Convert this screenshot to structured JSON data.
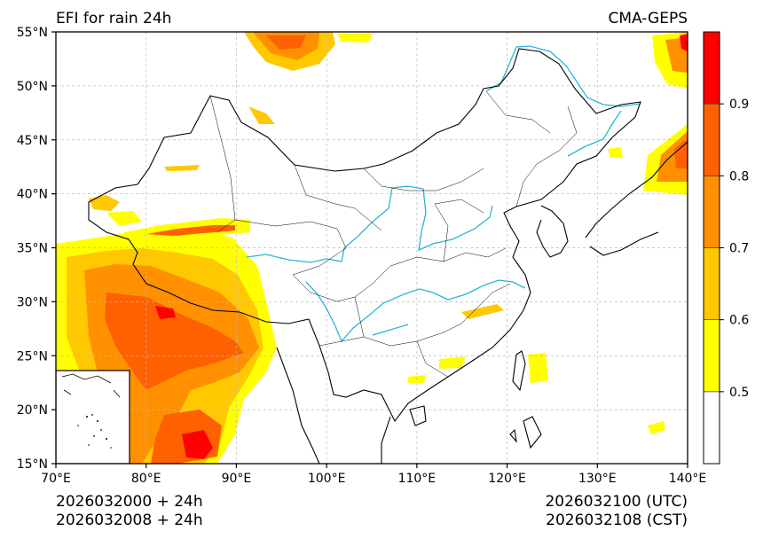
{
  "title_left": "EFI for rain 24h",
  "title_right": "CMA-GEPS",
  "map": {
    "lon_range": [
      70,
      140
    ],
    "lat_range": [
      15,
      55
    ],
    "lon_ticks": [
      70,
      80,
      90,
      100,
      110,
      120,
      130,
      140
    ],
    "lat_ticks": [
      15,
      20,
      25,
      30,
      35,
      40,
      45,
      50,
      55
    ],
    "lon_labels": [
      "70°E",
      "80°E",
      "90°E",
      "100°E",
      "110°E",
      "120°E",
      "130°E",
      "140°E"
    ],
    "lat_labels": [
      "15°N",
      "20°N",
      "25°N",
      "30°N",
      "35°N",
      "40°N",
      "45°N",
      "50°N",
      "55°N"
    ],
    "grid": true,
    "river_color": "#29b6d6",
    "border_color": "#000000"
  },
  "colorbar": {
    "levels": [
      0.5,
      0.6,
      0.7,
      0.8,
      0.9
    ],
    "labels": [
      "0.5",
      "0.6",
      "0.7",
      "0.8",
      "0.9"
    ],
    "colors": [
      "#ffffff",
      "#ffff00",
      "#ffc800",
      "#ff9000",
      "#ff6000",
      "#ff0000"
    ]
  },
  "footer": {
    "left_line1": "2026032000 + 24h",
    "left_line2": "2026032008 + 24h",
    "right_line1": "2026032100 (UTC)",
    "right_line2": "2026032108 (CST)"
  }
}
